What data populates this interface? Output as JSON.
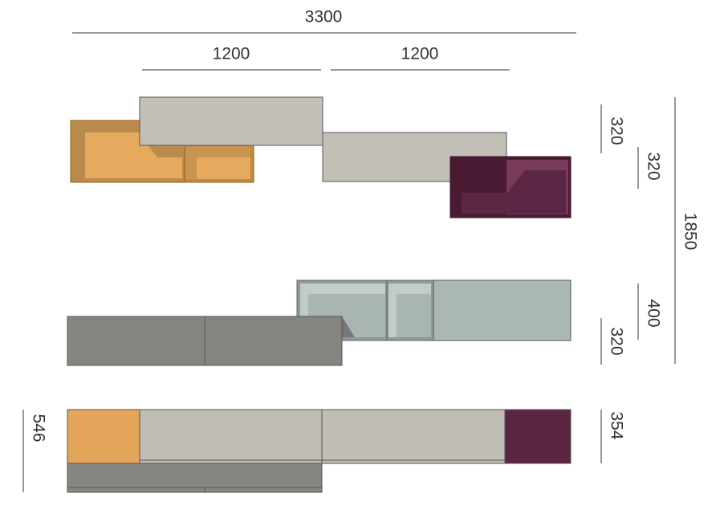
{
  "dimensions": [
    "3300",
    "1200",
    "1200",
    "320",
    "320",
    "1850",
    "400",
    "320",
    "546",
    "354"
  ]
}
